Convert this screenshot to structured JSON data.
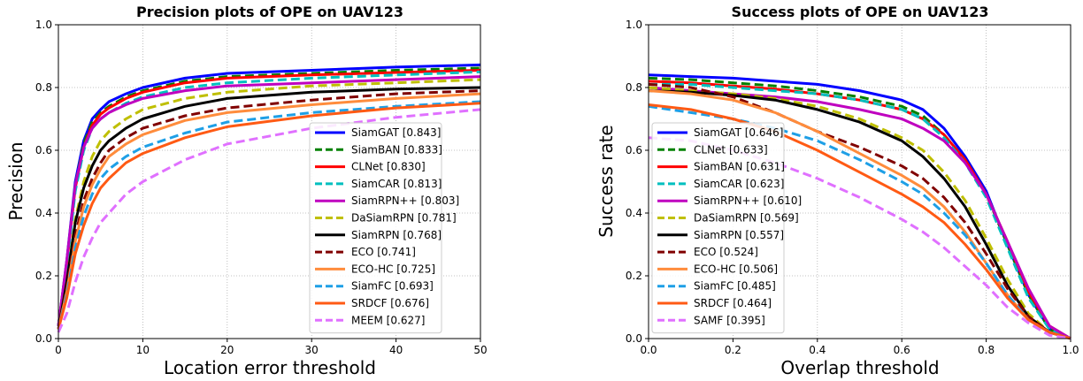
{
  "chart_data": [
    {
      "type": "line",
      "title": "Precision plots of OPE on UAV123",
      "xlabel": "Location error threshold",
      "ylabel": "Precision",
      "xlim": [
        0,
        50
      ],
      "ylim": [
        0,
        1
      ],
      "xticks": [
        "0",
        "10",
        "20",
        "30",
        "40",
        "50"
      ],
      "yticks": [
        "0.0",
        "0.2",
        "0.4",
        "0.6",
        "0.8",
        "1.0"
      ],
      "grid": true,
      "legend_position": "lower-right",
      "x": [
        0,
        1,
        2,
        3,
        4,
        5,
        6,
        8,
        10,
        15,
        20,
        30,
        40,
        50
      ],
      "series": [
        {
          "name": "SiamGAT [0.843]",
          "color": "#0000ff",
          "dash": "solid",
          "values": [
            0.04,
            0.25,
            0.5,
            0.63,
            0.7,
            0.73,
            0.755,
            0.78,
            0.8,
            0.83,
            0.845,
            0.855,
            0.865,
            0.872
          ]
        },
        {
          "name": "SiamBAN [0.833]",
          "color": "#008000",
          "dash": "dash",
          "values": [
            0.04,
            0.24,
            0.49,
            0.62,
            0.69,
            0.72,
            0.74,
            0.77,
            0.79,
            0.82,
            0.835,
            0.845,
            0.855,
            0.862
          ]
        },
        {
          "name": "CLNet [0.830]",
          "color": "#ff0000",
          "dash": "solid",
          "values": [
            0.04,
            0.24,
            0.48,
            0.61,
            0.68,
            0.715,
            0.735,
            0.765,
            0.785,
            0.815,
            0.83,
            0.84,
            0.848,
            0.855
          ]
        },
        {
          "name": "SiamCAR [0.813]",
          "color": "#00bfbf",
          "dash": "dash",
          "values": [
            0.04,
            0.23,
            0.47,
            0.6,
            0.67,
            0.7,
            0.72,
            0.75,
            0.77,
            0.8,
            0.815,
            0.83,
            0.84,
            0.85
          ]
        },
        {
          "name": "SiamRPN++ [0.803]",
          "color": "#bf00bf",
          "dash": "solid",
          "values": [
            0.04,
            0.25,
            0.49,
            0.61,
            0.67,
            0.7,
            0.72,
            0.745,
            0.765,
            0.79,
            0.805,
            0.815,
            0.825,
            0.835
          ]
        },
        {
          "name": "DaSiamRPN [0.781]",
          "color": "#bfbf00",
          "dash": "dash",
          "values": [
            0.03,
            0.18,
            0.38,
            0.5,
            0.58,
            0.63,
            0.66,
            0.7,
            0.73,
            0.765,
            0.785,
            0.805,
            0.815,
            0.825
          ]
        },
        {
          "name": "SiamRPN [0.768]",
          "color": "#000000",
          "dash": "solid",
          "values": [
            0.03,
            0.18,
            0.37,
            0.48,
            0.55,
            0.6,
            0.63,
            0.67,
            0.7,
            0.74,
            0.765,
            0.785,
            0.795,
            0.8
          ]
        },
        {
          "name": "ECO [0.741]",
          "color": "#800000",
          "dash": "dash",
          "values": [
            0.03,
            0.16,
            0.33,
            0.44,
            0.51,
            0.56,
            0.6,
            0.64,
            0.67,
            0.71,
            0.735,
            0.76,
            0.78,
            0.79
          ]
        },
        {
          "name": "ECO-HC [0.725]",
          "color": "#ff8c3c",
          "dash": "solid",
          "values": [
            0.03,
            0.15,
            0.31,
            0.42,
            0.49,
            0.54,
            0.58,
            0.62,
            0.65,
            0.695,
            0.72,
            0.745,
            0.765,
            0.78
          ]
        },
        {
          "name": "SiamFC [0.693]",
          "color": "#1e9fe6",
          "dash": "dash",
          "values": [
            0.03,
            0.14,
            0.29,
            0.39,
            0.46,
            0.51,
            0.54,
            0.58,
            0.61,
            0.655,
            0.69,
            0.72,
            0.74,
            0.755
          ]
        },
        {
          "name": "SRDCF [0.676]",
          "color": "#ff5a14",
          "dash": "solid",
          "values": [
            0.03,
            0.13,
            0.27,
            0.36,
            0.43,
            0.48,
            0.51,
            0.56,
            0.59,
            0.64,
            0.675,
            0.71,
            0.735,
            0.75
          ]
        },
        {
          "name": "MEEM [0.627]",
          "color": "#e070ff",
          "dash": "dash",
          "values": [
            0.02,
            0.08,
            0.18,
            0.26,
            0.32,
            0.37,
            0.4,
            0.46,
            0.5,
            0.57,
            0.62,
            0.67,
            0.705,
            0.73
          ]
        }
      ]
    },
    {
      "type": "line",
      "title": "Success plots of OPE on UAV123",
      "xlabel": "Overlap threshold",
      "ylabel": "Success rate",
      "xlim": [
        0,
        1
      ],
      "ylim": [
        0,
        1
      ],
      "xticks": [
        "0.0",
        "0.2",
        "0.4",
        "0.6",
        "0.8",
        "1.0"
      ],
      "yticks": [
        "0.0",
        "0.2",
        "0.4",
        "0.6",
        "0.8",
        "1.0"
      ],
      "grid": true,
      "legend_position": "lower-left",
      "x": [
        0,
        0.1,
        0.2,
        0.3,
        0.4,
        0.5,
        0.6,
        0.65,
        0.7,
        0.75,
        0.8,
        0.85,
        0.9,
        0.95,
        1.0
      ],
      "series": [
        {
          "name": "SiamGAT [0.646]",
          "color": "#0000ff",
          "dash": "solid",
          "values": [
            0.84,
            0.835,
            0.83,
            0.82,
            0.81,
            0.79,
            0.76,
            0.73,
            0.67,
            0.58,
            0.47,
            0.3,
            0.14,
            0.03,
            0.0
          ]
        },
        {
          "name": "CLNet [0.633]",
          "color": "#008000",
          "dash": "dash",
          "values": [
            0.83,
            0.825,
            0.815,
            0.805,
            0.79,
            0.77,
            0.74,
            0.71,
            0.65,
            0.57,
            0.46,
            0.3,
            0.14,
            0.03,
            0.0
          ]
        },
        {
          "name": "SiamBAN [0.631]",
          "color": "#ff0000",
          "dash": "solid",
          "values": [
            0.82,
            0.815,
            0.805,
            0.795,
            0.78,
            0.76,
            0.73,
            0.7,
            0.65,
            0.57,
            0.46,
            0.31,
            0.15,
            0.04,
            0.0
          ]
        },
        {
          "name": "SiamCAR [0.623]",
          "color": "#00bfbf",
          "dash": "dash",
          "values": [
            0.81,
            0.81,
            0.8,
            0.79,
            0.78,
            0.76,
            0.73,
            0.7,
            0.64,
            0.56,
            0.45,
            0.29,
            0.13,
            0.03,
            0.0
          ]
        },
        {
          "name": "SiamRPN++ [0.610]",
          "color": "#bf00bf",
          "dash": "solid",
          "values": [
            0.8,
            0.79,
            0.78,
            0.77,
            0.755,
            0.73,
            0.7,
            0.67,
            0.63,
            0.56,
            0.46,
            0.31,
            0.16,
            0.04,
            0.0
          ]
        },
        {
          "name": "DaSiamRPN [0.569]",
          "color": "#bfbf00",
          "dash": "dash",
          "values": [
            0.8,
            0.79,
            0.78,
            0.765,
            0.74,
            0.7,
            0.64,
            0.6,
            0.53,
            0.44,
            0.32,
            0.19,
            0.08,
            0.02,
            0.0
          ]
        },
        {
          "name": "SiamRPN [0.557]",
          "color": "#000000",
          "dash": "solid",
          "values": [
            0.79,
            0.785,
            0.775,
            0.76,
            0.73,
            0.69,
            0.63,
            0.58,
            0.51,
            0.42,
            0.3,
            0.17,
            0.07,
            0.02,
            0.0
          ]
        },
        {
          "name": "ECO [0.524]",
          "color": "#800000",
          "dash": "dash",
          "values": [
            0.81,
            0.8,
            0.77,
            0.72,
            0.66,
            0.61,
            0.55,
            0.51,
            0.45,
            0.37,
            0.27,
            0.16,
            0.07,
            0.02,
            0.0
          ]
        },
        {
          "name": "ECO-HC [0.506]",
          "color": "#ff8c3c",
          "dash": "solid",
          "values": [
            0.79,
            0.78,
            0.76,
            0.72,
            0.66,
            0.59,
            0.52,
            0.48,
            0.42,
            0.34,
            0.24,
            0.14,
            0.06,
            0.02,
            0.0
          ]
        },
        {
          "name": "SiamFC [0.485]",
          "color": "#1e9fe6",
          "dash": "dash",
          "values": [
            0.74,
            0.72,
            0.7,
            0.67,
            0.63,
            0.57,
            0.5,
            0.46,
            0.4,
            0.33,
            0.24,
            0.14,
            0.06,
            0.02,
            0.0
          ]
        },
        {
          "name": "SRDCF [0.464]",
          "color": "#ff5a14",
          "dash": "solid",
          "values": [
            0.745,
            0.73,
            0.7,
            0.66,
            0.6,
            0.53,
            0.46,
            0.42,
            0.37,
            0.3,
            0.22,
            0.13,
            0.06,
            0.02,
            0.0
          ]
        },
        {
          "name": "SAMF [0.395]",
          "color": "#e070ff",
          "dash": "dash",
          "values": [
            0.64,
            0.63,
            0.6,
            0.56,
            0.51,
            0.45,
            0.38,
            0.34,
            0.29,
            0.23,
            0.17,
            0.1,
            0.05,
            0.01,
            0.0
          ]
        }
      ]
    }
  ]
}
